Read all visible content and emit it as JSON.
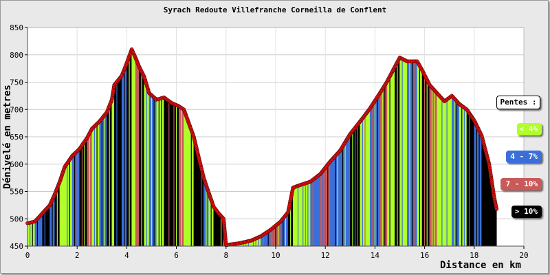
{
  "chart_data": {
    "type": "area",
    "title": "Syrach Redoute Villefranche Corneilla de Conflent",
    "xlabel": "Distance en km",
    "ylabel": "Dénivelé en metres",
    "xlim": [
      0,
      20
    ],
    "ylim": [
      450,
      850
    ],
    "x_ticks": [
      "0",
      "2",
      "4",
      "6",
      "8",
      "10",
      "12",
      "14",
      "16",
      "18",
      "20"
    ],
    "y_ticks": [
      "450",
      "500",
      "550",
      "600",
      "650",
      "700",
      "750",
      "800",
      "850"
    ],
    "grid": true,
    "legend": {
      "title": "Pentes :",
      "position": "right",
      "items": [
        {
          "label": "< 4%",
          "color": "#b0ff2a",
          "text_color": "#ffffff"
        },
        {
          "label": "4 - 7%",
          "color": "#3b6fd8",
          "text_color": "#ffffff"
        },
        {
          "label": "7 - 10%",
          "color": "#c85a5a",
          "text_color": "#ffffff"
        },
        {
          "label": "> 10%",
          "color": "#000000",
          "text_color": "#ffffff"
        }
      ]
    },
    "profile": [
      [
        0.0,
        492
      ],
      [
        0.3,
        495
      ],
      [
        0.6,
        510
      ],
      [
        0.9,
        525
      ],
      [
        1.1,
        545
      ],
      [
        1.3,
        568
      ],
      [
        1.5,
        595
      ],
      [
        1.8,
        615
      ],
      [
        2.1,
        628
      ],
      [
        2.4,
        648
      ],
      [
        2.6,
        665
      ],
      [
        2.9,
        678
      ],
      [
        3.2,
        695
      ],
      [
        3.4,
        718
      ],
      [
        3.5,
        745
      ],
      [
        3.8,
        762
      ],
      [
        4.0,
        785
      ],
      [
        4.2,
        810
      ],
      [
        4.35,
        795
      ],
      [
        4.5,
        778
      ],
      [
        4.7,
        760
      ],
      [
        4.9,
        730
      ],
      [
        5.2,
        718
      ],
      [
        5.5,
        722
      ],
      [
        5.8,
        712
      ],
      [
        6.1,
        706
      ],
      [
        6.3,
        700
      ],
      [
        6.5,
        675
      ],
      [
        6.7,
        650
      ],
      [
        6.9,
        612
      ],
      [
        7.1,
        575
      ],
      [
        7.3,
        548
      ],
      [
        7.5,
        522
      ],
      [
        7.7,
        510
      ],
      [
        7.9,
        500
      ],
      [
        8.0,
        452
      ],
      [
        8.5,
        455
      ],
      [
        9.0,
        460
      ],
      [
        9.4,
        468
      ],
      [
        9.8,
        480
      ],
      [
        10.2,
        495
      ],
      [
        10.5,
        512
      ],
      [
        10.7,
        557
      ],
      [
        11.0,
        562
      ],
      [
        11.4,
        568
      ],
      [
        11.8,
        582
      ],
      [
        12.2,
        605
      ],
      [
        12.6,
        625
      ],
      [
        13.0,
        655
      ],
      [
        13.4,
        678
      ],
      [
        13.8,
        702
      ],
      [
        14.2,
        730
      ],
      [
        14.5,
        752
      ],
      [
        14.8,
        778
      ],
      [
        15.0,
        795
      ],
      [
        15.3,
        788
      ],
      [
        15.7,
        788
      ],
      [
        15.9,
        772
      ],
      [
        16.2,
        745
      ],
      [
        16.5,
        730
      ],
      [
        16.8,
        715
      ],
      [
        17.1,
        725
      ],
      [
        17.4,
        710
      ],
      [
        17.7,
        700
      ],
      [
        18.0,
        680
      ],
      [
        18.3,
        652
      ],
      [
        18.6,
        600
      ],
      [
        18.8,
        540
      ],
      [
        18.9,
        518
      ]
    ],
    "slope_classes": [
      0,
      1,
      3,
      1,
      3,
      0,
      0,
      1,
      3,
      2,
      0,
      1,
      3,
      0,
      3,
      1,
      3,
      0,
      2,
      3,
      0,
      1,
      0,
      3,
      3,
      2,
      0,
      0,
      3,
      3,
      1,
      0,
      3,
      3,
      0,
      0,
      0,
      0,
      1,
      2,
      1,
      3,
      0,
      0,
      1,
      2,
      1,
      1,
      3,
      0,
      1,
      2,
      0,
      3,
      0,
      1,
      0,
      3,
      2,
      0,
      0,
      1,
      0,
      3,
      1,
      3,
      3,
      3
    ]
  }
}
